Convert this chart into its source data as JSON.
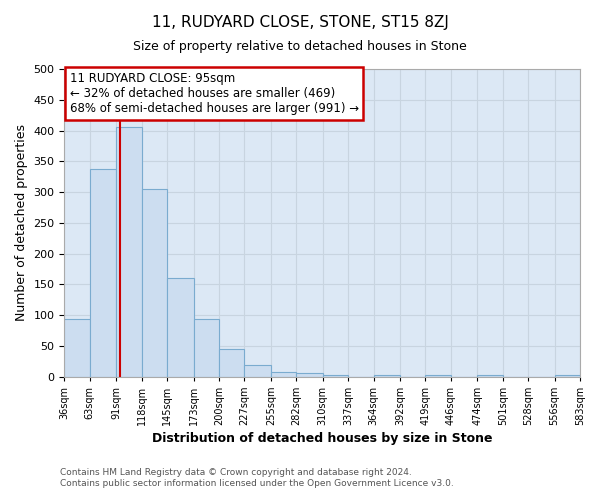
{
  "title": "11, RUDYARD CLOSE, STONE, ST15 8ZJ",
  "subtitle": "Size of property relative to detached houses in Stone",
  "xlabel": "Distribution of detached houses by size in Stone",
  "ylabel": "Number of detached properties",
  "bar_edges": [
    36,
    63,
    91,
    118,
    145,
    173,
    200,
    227,
    255,
    282,
    310,
    337,
    364,
    392,
    419,
    446,
    474,
    501,
    528,
    556,
    583
  ],
  "bar_heights": [
    93,
    338,
    405,
    305,
    160,
    93,
    45,
    18,
    8,
    5,
    3,
    0,
    2,
    0,
    2,
    0,
    2,
    0,
    0,
    2
  ],
  "bar_color": "#ccddf0",
  "bar_edge_color": "#7aabcf",
  "vline_x": 95,
  "vline_color": "#cc0000",
  "ylim": [
    0,
    500
  ],
  "annotation_title": "11 RUDYARD CLOSE: 95sqm",
  "annotation_line1": "← 32% of detached houses are smaller (469)",
  "annotation_line2": "68% of semi-detached houses are larger (991) →",
  "annotation_box_color": "#ffffff",
  "annotation_box_edge": "#cc0000",
  "grid_color": "#c8d4e0",
  "plot_bg_color": "#dce8f5",
  "fig_bg_color": "#ffffff",
  "footer_line1": "Contains HM Land Registry data © Crown copyright and database right 2024.",
  "footer_line2": "Contains public sector information licensed under the Open Government Licence v3.0.",
  "yticks": [
    0,
    50,
    100,
    150,
    200,
    250,
    300,
    350,
    400,
    450,
    500
  ]
}
